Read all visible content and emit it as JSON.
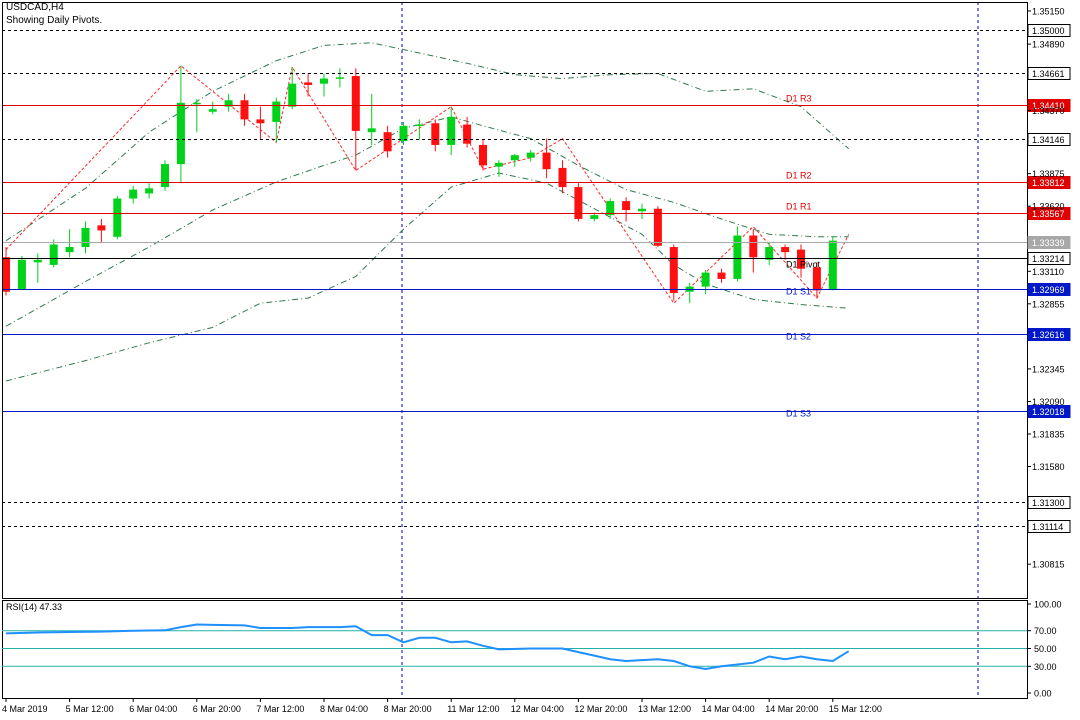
{
  "header": {
    "symbol": "USDCAD,H4",
    "subtitle": "Showing Daily Pivots."
  },
  "colors": {
    "bull": "#00d21a",
    "bear": "#ff1010",
    "resistance": "#e00000",
    "support": "#0018c8",
    "pivot": "#000000",
    "grid": "#000000",
    "vline": "#0000c0",
    "bollinger": "#2e7a4d",
    "zigzag": "#ff2a2a",
    "rsi": "#1e90ff",
    "rsi_level": "#20b2aa",
    "price_tag": "#0000ff"
  },
  "chart_data": [
    {
      "type": "candlestick",
      "title": "USDCAD,H4",
      "ylim": [
        1.3055,
        1.3522
      ],
      "y_ticks": [
        "1.35150",
        "1.34890",
        "1.34370",
        "1.33875",
        "1.33620",
        "1.33110",
        "1.32855",
        "1.32345",
        "1.32090",
        "1.31835",
        "1.31580",
        "1.30815"
      ],
      "x_labels": [
        "4 Mar 2019",
        "5 Mar 12:00",
        "6 Mar 04:00",
        "6 Mar 20:00",
        "7 Mar 12:00",
        "8 Mar 04:00",
        "8 Mar 20:00",
        "11 Mar 12:00",
        "12 Mar 04:00",
        "12 Mar 20:00",
        "13 Mar 12:00",
        "14 Mar 04:00",
        "14 Mar 20:00",
        "15 Mar 12:00"
      ],
      "candles": [
        {
          "o": 1.3322,
          "h": 1.333,
          "l": 1.3292,
          "c": 1.3295
        },
        {
          "o": 1.3297,
          "h": 1.3323,
          "l": 1.3297,
          "c": 1.332
        },
        {
          "o": 1.3318,
          "h": 1.3325,
          "l": 1.3302,
          "c": 1.332
        },
        {
          "o": 1.3316,
          "h": 1.3336,
          "l": 1.3314,
          "c": 1.3332
        },
        {
          "o": 1.3326,
          "h": 1.3344,
          "l": 1.3322,
          "c": 1.333
        },
        {
          "o": 1.333,
          "h": 1.335,
          "l": 1.3325,
          "c": 1.3345
        },
        {
          "o": 1.3347,
          "h": 1.3352,
          "l": 1.3333,
          "c": 1.3343
        },
        {
          "o": 1.3338,
          "h": 1.337,
          "l": 1.3336,
          "c": 1.3368
        },
        {
          "o": 1.3368,
          "h": 1.3378,
          "l": 1.3364,
          "c": 1.3375
        },
        {
          "o": 1.3372,
          "h": 1.338,
          "l": 1.3368,
          "c": 1.3376
        },
        {
          "o": 1.3377,
          "h": 1.3398,
          "l": 1.3374,
          "c": 1.3395
        },
        {
          "o": 1.3395,
          "h": 1.3472,
          "l": 1.338,
          "c": 1.3443
        },
        {
          "o": 1.3442,
          "h": 1.3446,
          "l": 1.342,
          "c": 1.3443
        },
        {
          "o": 1.3436,
          "h": 1.3444,
          "l": 1.3434,
          "c": 1.3438
        },
        {
          "o": 1.344,
          "h": 1.345,
          "l": 1.3436,
          "c": 1.3445
        },
        {
          "o": 1.3445,
          "h": 1.345,
          "l": 1.3425,
          "c": 1.343
        },
        {
          "o": 1.343,
          "h": 1.344,
          "l": 1.3414,
          "c": 1.3427
        },
        {
          "o": 1.3428,
          "h": 1.3447,
          "l": 1.3412,
          "c": 1.3444
        },
        {
          "o": 1.344,
          "h": 1.3471,
          "l": 1.3438,
          "c": 1.3458
        },
        {
          "o": 1.3459,
          "h": 1.3466,
          "l": 1.3448,
          "c": 1.3457
        },
        {
          "o": 1.3458,
          "h": 1.3466,
          "l": 1.3448,
          "c": 1.3462
        },
        {
          "o": 1.3462,
          "h": 1.347,
          "l": 1.3455,
          "c": 1.3463
        },
        {
          "o": 1.3464,
          "h": 1.347,
          "l": 1.339,
          "c": 1.3421
        },
        {
          "o": 1.342,
          "h": 1.345,
          "l": 1.341,
          "c": 1.3423
        },
        {
          "o": 1.342,
          "h": 1.3425,
          "l": 1.34,
          "c": 1.3405
        },
        {
          "o": 1.3413,
          "h": 1.3428,
          "l": 1.341,
          "c": 1.3425
        },
        {
          "o": 1.3426,
          "h": 1.343,
          "l": 1.3414,
          "c": 1.3426
        },
        {
          "o": 1.3427,
          "h": 1.343,
          "l": 1.3405,
          "c": 1.341
        },
        {
          "o": 1.341,
          "h": 1.344,
          "l": 1.3402,
          "c": 1.3432
        },
        {
          "o": 1.3426,
          "h": 1.3432,
          "l": 1.3408,
          "c": 1.3411
        },
        {
          "o": 1.341,
          "h": 1.3414,
          "l": 1.339,
          "c": 1.3394
        },
        {
          "o": 1.3393,
          "h": 1.3398,
          "l": 1.3385,
          "c": 1.3396
        },
        {
          "o": 1.3398,
          "h": 1.3403,
          "l": 1.3393,
          "c": 1.3402
        },
        {
          "o": 1.34,
          "h": 1.3406,
          "l": 1.3397,
          "c": 1.3404
        },
        {
          "o": 1.3404,
          "h": 1.3415,
          "l": 1.3384,
          "c": 1.3391
        },
        {
          "o": 1.3392,
          "h": 1.3398,
          "l": 1.3372,
          "c": 1.3377
        },
        {
          "o": 1.3377,
          "h": 1.338,
          "l": 1.335,
          "c": 1.3352
        },
        {
          "o": 1.3352,
          "h": 1.3357,
          "l": 1.335,
          "c": 1.3355
        },
        {
          "o": 1.3355,
          "h": 1.3368,
          "l": 1.3352,
          "c": 1.3366
        },
        {
          "o": 1.3366,
          "h": 1.3369,
          "l": 1.335,
          "c": 1.3359
        },
        {
          "o": 1.3358,
          "h": 1.3364,
          "l": 1.3352,
          "c": 1.336
        },
        {
          "o": 1.336,
          "h": 1.3362,
          "l": 1.333,
          "c": 1.3331
        },
        {
          "o": 1.333,
          "h": 1.3332,
          "l": 1.3288,
          "c": 1.3294
        },
        {
          "o": 1.3295,
          "h": 1.3302,
          "l": 1.3286,
          "c": 1.3299
        },
        {
          "o": 1.3299,
          "h": 1.3312,
          "l": 1.3293,
          "c": 1.331
        },
        {
          "o": 1.331,
          "h": 1.3313,
          "l": 1.3302,
          "c": 1.3305
        },
        {
          "o": 1.3305,
          "h": 1.3346,
          "l": 1.3303,
          "c": 1.3339
        },
        {
          "o": 1.3339,
          "h": 1.3344,
          "l": 1.331,
          "c": 1.3322
        },
        {
          "o": 1.332,
          "h": 1.3334,
          "l": 1.3316,
          "c": 1.333
        },
        {
          "o": 1.333,
          "h": 1.3332,
          "l": 1.332,
          "c": 1.3326
        },
        {
          "o": 1.3328,
          "h": 1.3332,
          "l": 1.3306,
          "c": 1.3313
        },
        {
          "o": 1.3314,
          "h": 1.3318,
          "l": 1.329,
          "c": 1.3296
        },
        {
          "o": 1.3297,
          "h": 1.3338,
          "l": 1.3296,
          "c": 1.3335
        }
      ],
      "bollinger_upper": [
        [
          0,
          1.3335
        ],
        [
          5,
          1.3376
        ],
        [
          9,
          1.342
        ],
        [
          13,
          1.3452
        ],
        [
          17,
          1.3476
        ],
        [
          20,
          1.3488
        ],
        [
          23,
          1.349
        ],
        [
          26,
          1.3482
        ],
        [
          29,
          1.3474
        ],
        [
          32,
          1.3465
        ],
        [
          35,
          1.3462
        ],
        [
          38,
          1.3465
        ],
        [
          41,
          1.3466
        ],
        [
          44,
          1.3452
        ],
        [
          47,
          1.3454
        ],
        [
          50,
          1.344
        ],
        [
          53,
          1.3407
        ]
      ],
      "bollinger_middle": [
        [
          0,
          1.3268
        ],
        [
          5,
          1.3303
        ],
        [
          9,
          1.333
        ],
        [
          13,
          1.3359
        ],
        [
          17,
          1.3381
        ],
        [
          20,
          1.3394
        ],
        [
          22,
          1.3402
        ],
        [
          25,
          1.3423
        ],
        [
          28,
          1.3432
        ],
        [
          30,
          1.3425
        ],
        [
          33,
          1.3415
        ],
        [
          36,
          1.3394
        ],
        [
          39,
          1.3375
        ],
        [
          42,
          1.3365
        ],
        [
          45,
          1.3352
        ],
        [
          48,
          1.334
        ],
        [
          51,
          1.3338
        ],
        [
          53,
          1.3338
        ]
      ],
      "bollinger_lower": [
        [
          0,
          1.3225
        ],
        [
          5,
          1.3241
        ],
        [
          9,
          1.3255
        ],
        [
          13,
          1.3267
        ],
        [
          16,
          1.3286
        ],
        [
          19,
          1.329
        ],
        [
          22,
          1.3307
        ],
        [
          25,
          1.3344
        ],
        [
          28,
          1.3377
        ],
        [
          31,
          1.3388
        ],
        [
          34,
          1.338
        ],
        [
          37,
          1.336
        ],
        [
          40,
          1.334
        ],
        [
          42,
          1.3316
        ],
        [
          44,
          1.3301
        ],
        [
          47,
          1.3289
        ],
        [
          50,
          1.3285
        ],
        [
          53,
          1.3282
        ]
      ],
      "zigzag": [
        [
          0,
          1.3328
        ],
        [
          11,
          1.3472
        ],
        [
          17,
          1.3412
        ],
        [
          18,
          1.3471
        ],
        [
          22,
          1.339
        ],
        [
          28,
          1.344
        ],
        [
          30,
          1.3391
        ],
        [
          33,
          1.34
        ],
        [
          35,
          1.3415
        ],
        [
          42,
          1.3286
        ],
        [
          47,
          1.3346
        ],
        [
          51,
          1.329
        ],
        [
          53,
          1.334
        ]
      ],
      "price_levels": [
        {
          "price": 1.35,
          "label": "1.35000",
          "style": "dashed",
          "kind": "grid"
        },
        {
          "price": 1.34661,
          "label": "1.34661",
          "style": "dashed",
          "kind": "grid"
        },
        {
          "price": 1.3441,
          "label": "1.34410",
          "name": "D1 R3",
          "style": "solid",
          "kind": "resistance"
        },
        {
          "price": 1.34146,
          "label": "1.34146",
          "style": "dashed",
          "kind": "grid"
        },
        {
          "price": 1.33812,
          "label": "1.33812",
          "name": "D1 R2",
          "style": "solid",
          "kind": "resistance"
        },
        {
          "price": 1.33567,
          "label": "1.33567",
          "name": "D1 R1",
          "style": "solid",
          "kind": "resistance"
        },
        {
          "price": 1.33339,
          "label": "1.33339",
          "style": "solid",
          "kind": "bid"
        },
        {
          "price": 1.33214,
          "label": "1.33214",
          "name": "D1 Pivot",
          "style": "solid",
          "kind": "pivot"
        },
        {
          "price": 1.32969,
          "label": "1.32969",
          "name": "D1 S1",
          "style": "solid",
          "kind": "support"
        },
        {
          "price": 1.32616,
          "label": "1.32616",
          "name": "D1 S2",
          "style": "solid",
          "kind": "support"
        },
        {
          "price": 1.32018,
          "label": "1.32018",
          "name": "D1 S3",
          "style": "solid",
          "kind": "support"
        },
        {
          "price": 1.313,
          "label": "1.31300",
          "style": "dashed",
          "kind": "grid"
        },
        {
          "price": 1.31114,
          "label": "1.31114",
          "style": "dashed",
          "kind": "grid"
        }
      ]
    },
    {
      "type": "line",
      "title": "RSI(14) 47.33",
      "ylim": [
        0,
        100
      ],
      "y_ticks": [
        "100.00",
        "70.00",
        "50.00",
        "30.00",
        "0.00"
      ],
      "levels": [
        70,
        50,
        30
      ],
      "values": [
        [
          0,
          67
        ],
        [
          2,
          68
        ],
        [
          4,
          68.5
        ],
        [
          6,
          69
        ],
        [
          8,
          70
        ],
        [
          10,
          70.5
        ],
        [
          11,
          74
        ],
        [
          12,
          77
        ],
        [
          13,
          76.5
        ],
        [
          15,
          76
        ],
        [
          16,
          73
        ],
        [
          18,
          73
        ],
        [
          19,
          74
        ],
        [
          21,
          74
        ],
        [
          22,
          75
        ],
        [
          23,
          65
        ],
        [
          24,
          65
        ],
        [
          25,
          57
        ],
        [
          26,
          62
        ],
        [
          27,
          62
        ],
        [
          28,
          57
        ],
        [
          29,
          58
        ],
        [
          30,
          53
        ],
        [
          31,
          49
        ],
        [
          33,
          50
        ],
        [
          35,
          50
        ],
        [
          36,
          46
        ],
        [
          37,
          42
        ],
        [
          38,
          38
        ],
        [
          39,
          36
        ],
        [
          40,
          37
        ],
        [
          41,
          38
        ],
        [
          42,
          36
        ],
        [
          43,
          30
        ],
        [
          44,
          27
        ],
        [
          45,
          30
        ],
        [
          46,
          32
        ],
        [
          47,
          34
        ],
        [
          48,
          41
        ],
        [
          49,
          38
        ],
        [
          50,
          41
        ],
        [
          51,
          38
        ],
        [
          52,
          36
        ],
        [
          53,
          47
        ]
      ]
    }
  ]
}
